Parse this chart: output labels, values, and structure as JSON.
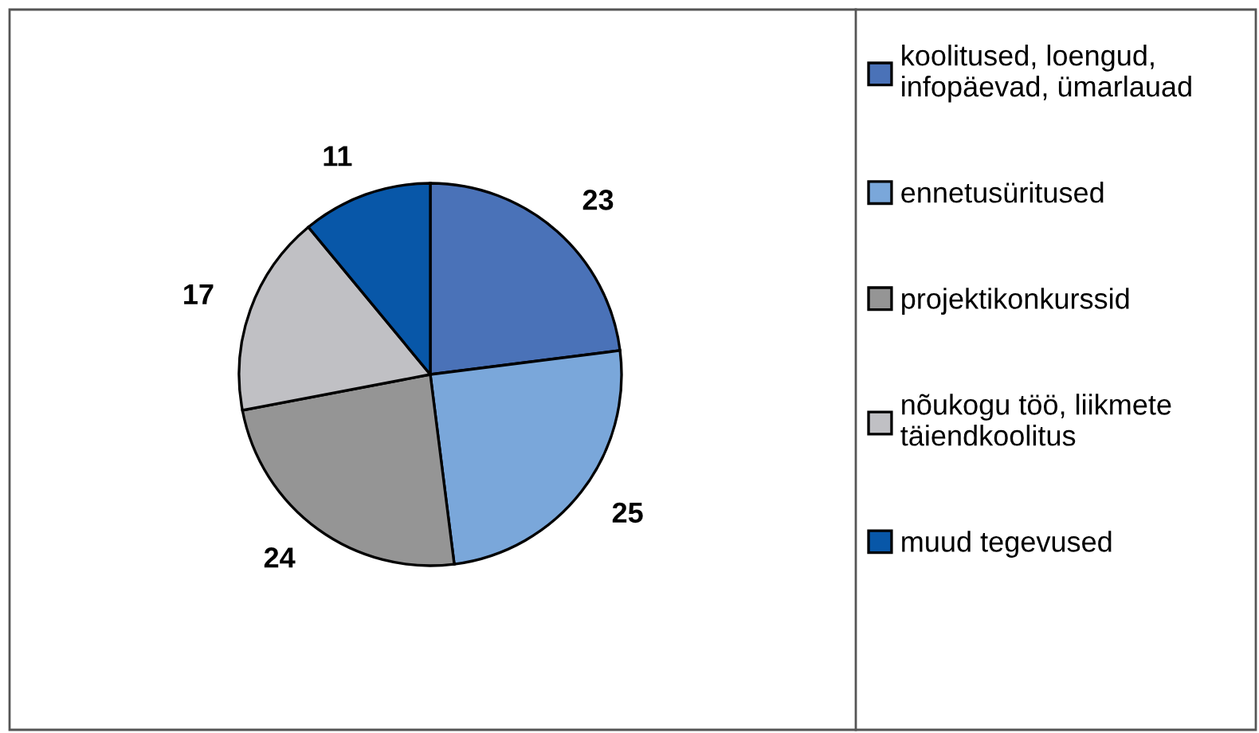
{
  "chart_data": {
    "type": "pie",
    "categories": [
      "koolitused, loengud,\ninfopäevad, ümarlauad",
      "ennetusüritused",
      "projektikonkurssid",
      "nõukogu töö, liikmete\ntäiendkoolitus",
      "muud tegevused"
    ],
    "values": [
      23,
      25,
      24,
      17,
      11
    ],
    "colors": [
      "#4a72b8",
      "#7aa7da",
      "#959595",
      "#c0c0c4",
      "#0857a8"
    ],
    "data_labels": true,
    "legend": "right"
  }
}
